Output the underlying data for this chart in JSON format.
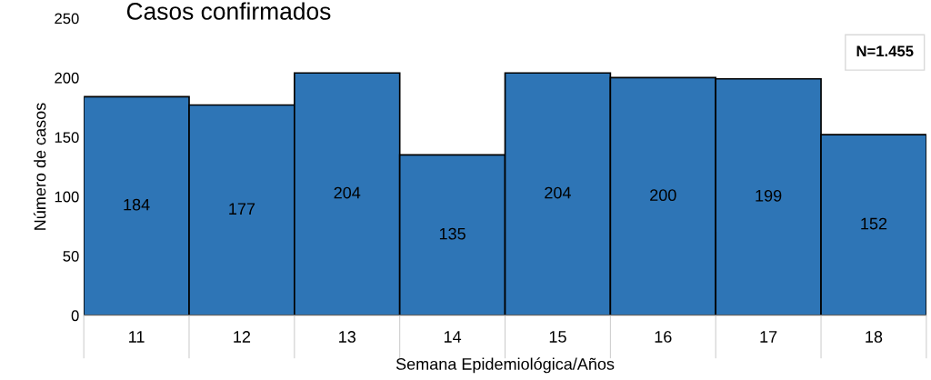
{
  "chart_data": {
    "type": "bar",
    "title": "Casos confirmados",
    "xlabel": "Semana Epidemiológica/Años",
    "ylabel": "Número de casos",
    "categories": [
      "11",
      "12",
      "13",
      "14",
      "15",
      "16",
      "17",
      "18"
    ],
    "values": [
      184,
      177,
      204,
      135,
      204,
      200,
      199,
      152
    ],
    "color": "#2e75b6",
    "data_labels": true,
    "ylim": [
      0,
      250
    ],
    "yticks": [
      0,
      50,
      100,
      150,
      200,
      250
    ],
    "grid": false,
    "annotations": [
      "N=1.455"
    ]
  }
}
